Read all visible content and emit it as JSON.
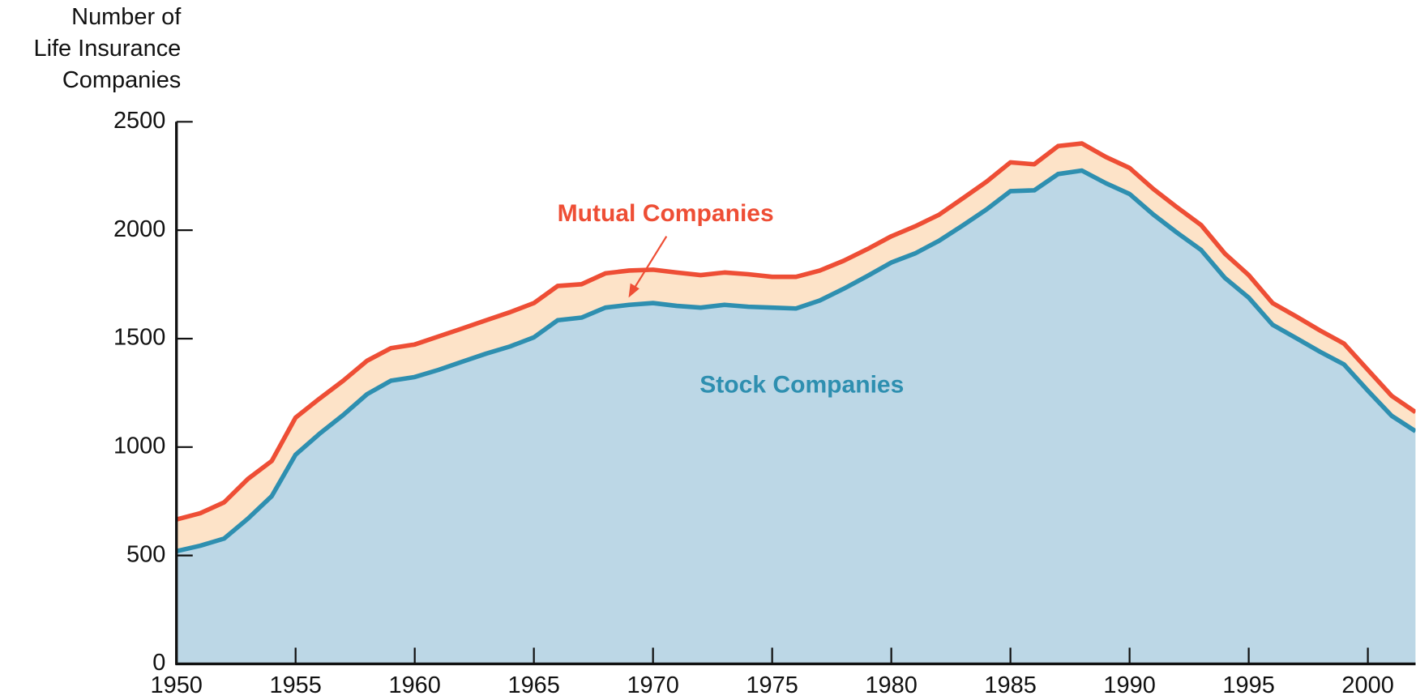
{
  "chart_data": {
    "type": "stacked_area",
    "ylabel": [
      "Number of",
      "Life Insurance",
      "Companies"
    ],
    "x": [
      1950,
      1951,
      1952,
      1953,
      1954,
      1955,
      1956,
      1957,
      1958,
      1959,
      1960,
      1961,
      1962,
      1963,
      1964,
      1965,
      1966,
      1967,
      1968,
      1969,
      1970,
      1971,
      1972,
      1973,
      1974,
      1975,
      1976,
      1977,
      1978,
      1979,
      1980,
      1981,
      1982,
      1983,
      1984,
      1985,
      1986,
      1987,
      1988,
      1989,
      1990,
      1991,
      1992,
      1993,
      1994,
      1995,
      1996,
      1997,
      1998,
      1999,
      2000,
      2001,
      2002
    ],
    "series": [
      {
        "name": "Stock Companies",
        "color": "#2e8fb0",
        "fill": "#bcd7e6",
        "values": [
          520,
          545,
          578,
          670,
          774,
          965,
          1061,
          1148,
          1244,
          1306,
          1323,
          1356,
          1394,
          1431,
          1464,
          1506,
          1585,
          1597,
          1643,
          1656,
          1664,
          1651,
          1643,
          1656,
          1647,
          1643,
          1639,
          1676,
          1730,
          1789,
          1851,
          1893,
          1951,
          2022,
          2096,
          2180,
          2184,
          2259,
          2275,
          2217,
          2167,
          2072,
          1988,
          1909,
          1780,
          1689,
          1564,
          1502,
          1439,
          1381,
          1260,
          1144,
          1073
        ]
      },
      {
        "name": "Mutual Companies",
        "color": "#ee4e35",
        "fill": "#fde3c8",
        "values": [
          146,
          150,
          167,
          183,
          162,
          171,
          162,
          158,
          154,
          150,
          150,
          154,
          153,
          154,
          158,
          158,
          158,
          154,
          158,
          158,
          154,
          154,
          150,
          149,
          150,
          142,
          146,
          138,
          129,
          124,
          121,
          125,
          120,
          125,
          128,
          133,
          120,
          129,
          125,
          121,
          120,
          118,
          117,
          115,
          112,
          104,
          100,
          100,
          98,
          96,
          96,
          92,
          88
        ]
      }
    ],
    "xlim": [
      1950,
      2002
    ],
    "xticks": [
      1950,
      1955,
      1960,
      1965,
      1970,
      1975,
      1980,
      1985,
      1990,
      1995,
      2000
    ],
    "ylim": [
      0,
      2500
    ],
    "yticks": [
      0,
      500,
      1000,
      1500,
      2000,
      2500
    ]
  }
}
